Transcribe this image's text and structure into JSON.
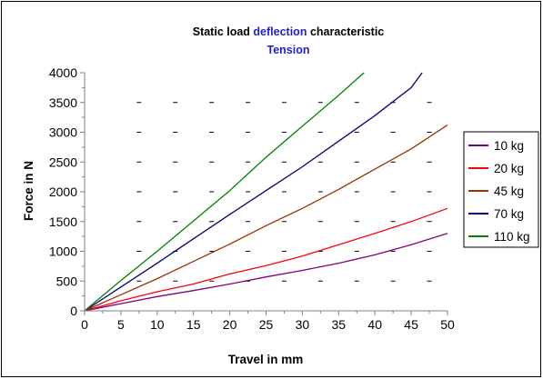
{
  "chart_data": {
    "type": "line",
    "title": {
      "line1": [
        {
          "text": "Static load ",
          "color": "#000000"
        },
        {
          "text": "deflection",
          "color": "#1f1fd0"
        },
        {
          "text": " characteristic",
          "color": "#000000"
        }
      ],
      "line2": {
        "text": "Tension",
        "color": "#1f1fd0"
      }
    },
    "xlabel": "Travel in mm",
    "ylabel": "Force in N",
    "xlim": [
      0,
      50
    ],
    "ylim": [
      0,
      4000
    ],
    "x_ticks": [
      "0",
      "5",
      "10",
      "15",
      "20",
      "25",
      "30",
      "35",
      "40",
      "45",
      "50"
    ],
    "y_ticks": [
      "0",
      "500",
      "1000",
      "1500",
      "2000",
      "2500",
      "3000",
      "3500",
      "4000"
    ],
    "grid": "dashed-minor",
    "legend_position": "right",
    "series": [
      {
        "name": "10 kg",
        "color": "#800080",
        "x": [
          0,
          5,
          10,
          15,
          20,
          25,
          30,
          35,
          40,
          45,
          50
        ],
        "y": [
          0,
          120,
          240,
          340,
          450,
          570,
          680,
          800,
          940,
          1110,
          1300
        ]
      },
      {
        "name": "20 kg",
        "color": "#ff0000",
        "x": [
          0,
          5,
          10,
          15,
          20,
          25,
          30,
          35,
          40,
          45,
          50
        ],
        "y": [
          0,
          170,
          320,
          450,
          620,
          760,
          920,
          1110,
          1300,
          1500,
          1720
        ]
      },
      {
        "name": "45 kg",
        "color": "#993300",
        "x": [
          0,
          5,
          10,
          15,
          20,
          25,
          30,
          35,
          40,
          45,
          50
        ],
        "y": [
          0,
          270,
          540,
          830,
          1120,
          1430,
          1720,
          2040,
          2380,
          2720,
          3120
        ]
      },
      {
        "name": "70 kg",
        "color": "#000080",
        "x": [
          0,
          5,
          10,
          15,
          20,
          25,
          30,
          35,
          40,
          45,
          46.5
        ],
        "y": [
          0,
          400,
          800,
          1210,
          1620,
          2020,
          2420,
          2850,
          3280,
          3750,
          4000
        ]
      },
      {
        "name": "110 kg",
        "color": "#008000",
        "x": [
          0,
          5,
          10,
          15,
          20,
          25,
          30,
          35,
          38.5
        ],
        "y": [
          0,
          510,
          1000,
          1510,
          2020,
          2580,
          3100,
          3620,
          4000
        ]
      }
    ]
  }
}
